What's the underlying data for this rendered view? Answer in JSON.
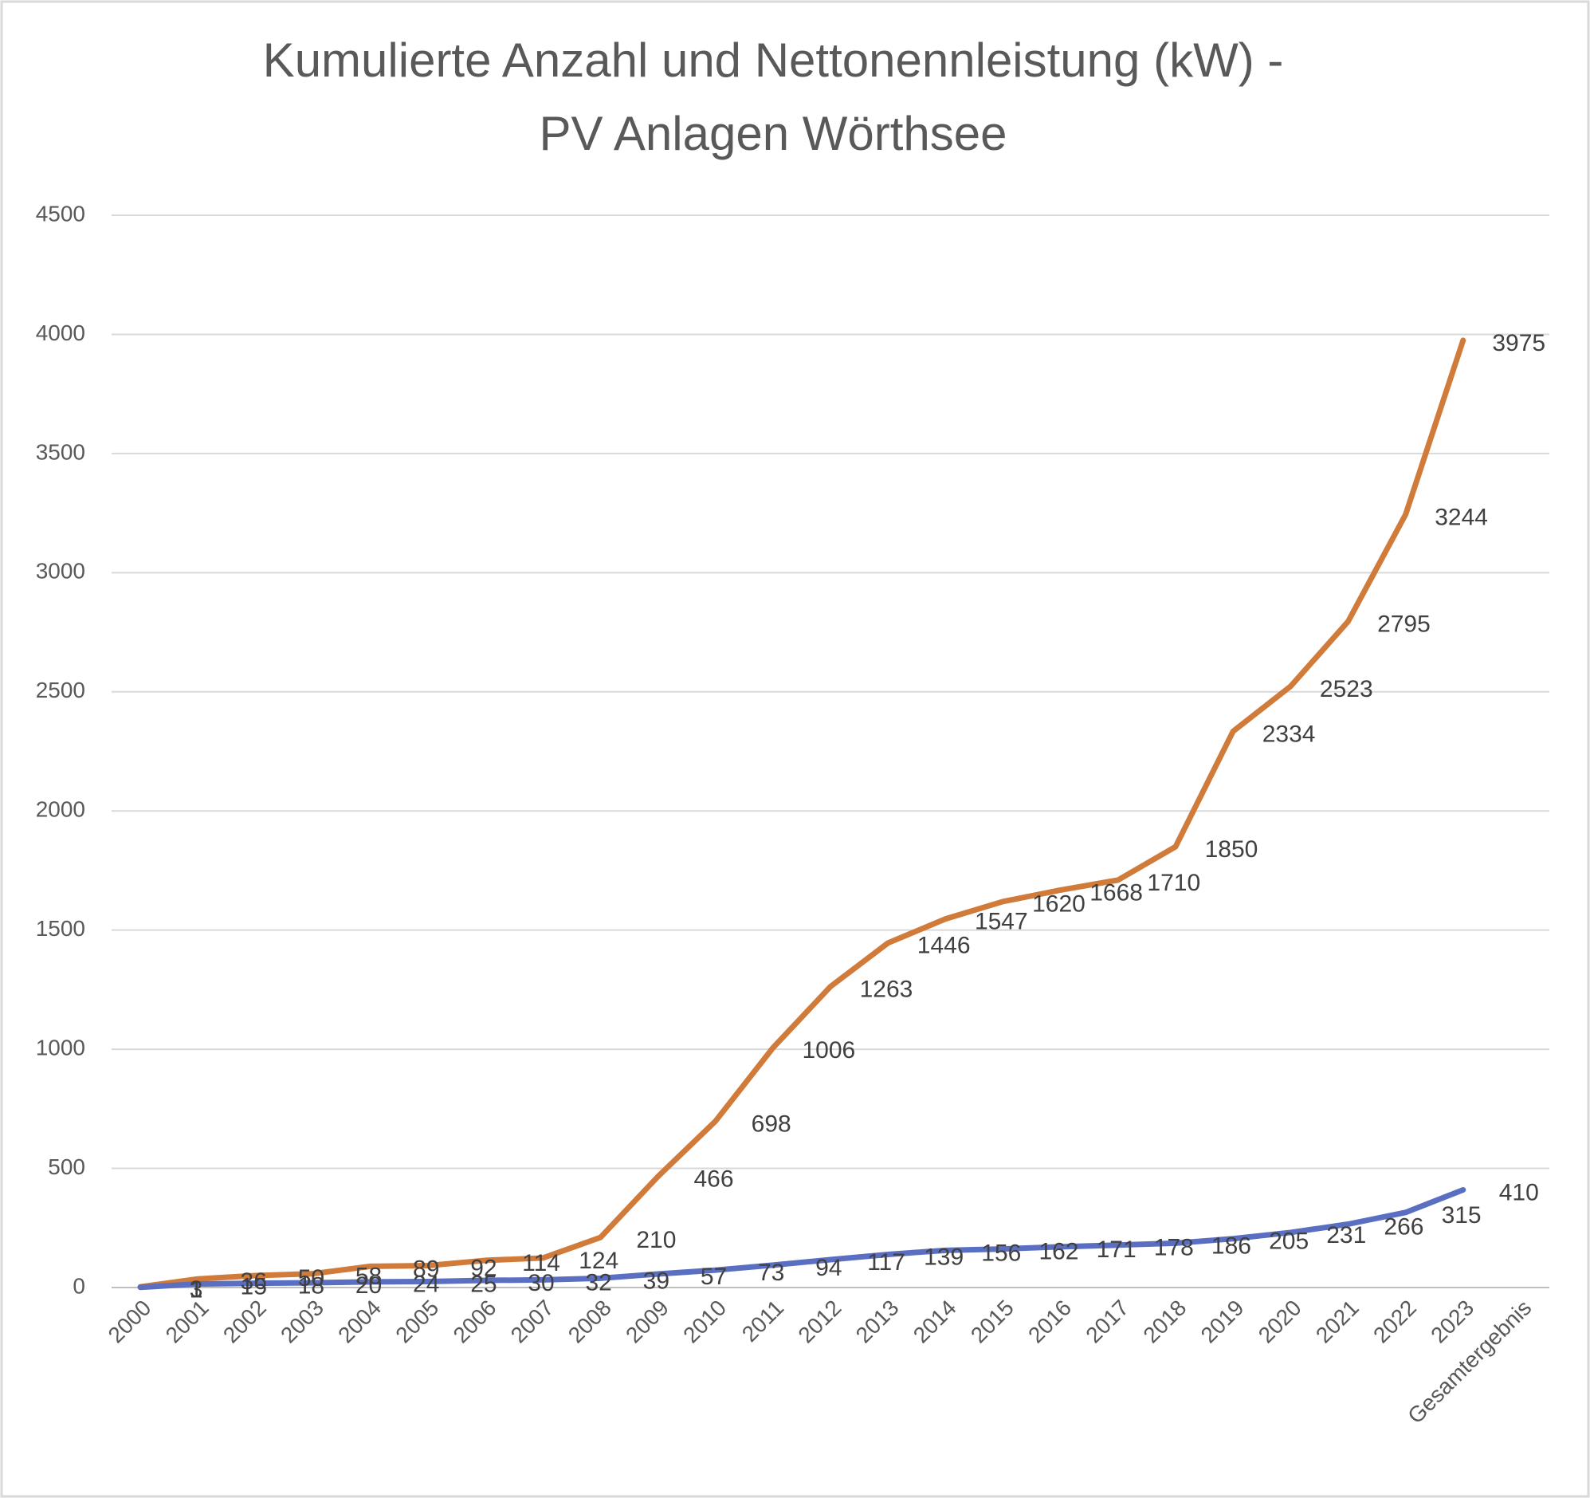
{
  "chart_data": {
    "type": "line",
    "title": [
      "Kumulierte Anzahl und Nettonennleistung (kW) -",
      "PV Anlagen Wörthsee"
    ],
    "categories": [
      "2000",
      "2001",
      "2002",
      "2003",
      "2004",
      "2005",
      "2006",
      "2007",
      "2008",
      "2009",
      "2010",
      "2011",
      "2012",
      "2013",
      "2014",
      "2015",
      "2016",
      "2017",
      "2018",
      "2019",
      "2020",
      "2021",
      "2022",
      "2023",
      "Gesamtergebnis"
    ],
    "series": [
      {
        "color": "#d07b3a",
        "values": [
          3,
          36,
          50,
          58,
          89,
          92,
          114,
          124,
          210,
          466,
          698,
          1006,
          1263,
          1446,
          1547,
          1620,
          1668,
          1710,
          1850,
          2334,
          2523,
          2795,
          3244,
          3975,
          null
        ]
      },
      {
        "color": "#5a6fc1",
        "values": [
          1,
          15,
          18,
          20,
          24,
          25,
          30,
          32,
          39,
          57,
          73,
          94,
          117,
          139,
          156,
          162,
          171,
          178,
          186,
          205,
          231,
          266,
          315,
          410,
          null
        ]
      }
    ],
    "ylim": [
      0,
      4500
    ],
    "yticks": [
      0,
      500,
      1000,
      1500,
      2000,
      2500,
      3000,
      3500,
      4000,
      4500
    ],
    "grid": true
  }
}
